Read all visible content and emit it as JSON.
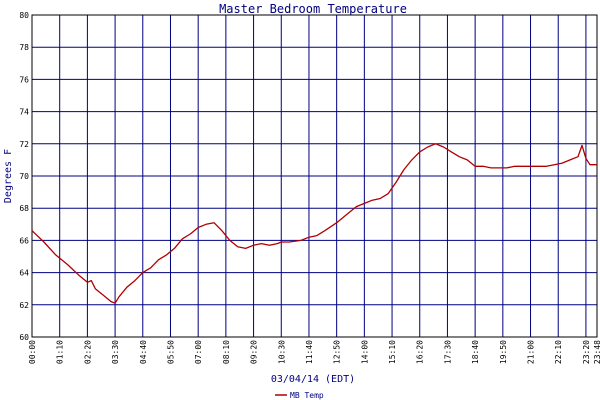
{
  "chart_data": {
    "type": "line",
    "title": "Master Bedroom Temperature",
    "xlabel": "03/04/14 (EDT)",
    "ylabel": "Degrees F",
    "ylim": [
      60,
      80
    ],
    "yticks": [
      60,
      62,
      64,
      66,
      68,
      70,
      72,
      74,
      76,
      78,
      80
    ],
    "xlim": [
      "00:00",
      "23:48"
    ],
    "xtick_labels": [
      "00:00",
      "01:10",
      "02:20",
      "03:30",
      "04:40",
      "05:50",
      "07:00",
      "08:10",
      "09:20",
      "10:30",
      "11:40",
      "12:50",
      "14:00",
      "15:10",
      "16:20",
      "17:30",
      "18:40",
      "19:50",
      "21:00",
      "22:10",
      "23:20",
      "23:48"
    ],
    "grid": true,
    "legend_position": "bottom-center",
    "colors": {
      "series": "#b00000",
      "grid": "#000080",
      "axes": "#000000",
      "text": "#000080"
    },
    "series": [
      {
        "name": "MB Temp",
        "x": [
          "00:00",
          "00:30",
          "01:00",
          "01:30",
          "02:00",
          "02:20",
          "02:30",
          "02:40",
          "03:00",
          "03:20",
          "03:30",
          "03:40",
          "04:00",
          "04:20",
          "04:40",
          "05:00",
          "05:20",
          "05:40",
          "06:00",
          "06:20",
          "06:40",
          "07:00",
          "07:20",
          "07:40",
          "08:00",
          "08:20",
          "08:40",
          "09:00",
          "09:20",
          "09:40",
          "10:00",
          "10:20",
          "10:30",
          "10:50",
          "11:20",
          "11:40",
          "12:00",
          "12:20",
          "12:50",
          "13:20",
          "13:40",
          "14:00",
          "14:20",
          "14:40",
          "15:00",
          "15:20",
          "15:40",
          "16:00",
          "16:20",
          "16:40",
          "17:00",
          "17:20",
          "17:40",
          "18:00",
          "18:20",
          "18:40",
          "19:00",
          "19:20",
          "19:40",
          "20:00",
          "20:20",
          "20:40",
          "21:00",
          "21:20",
          "21:40",
          "22:00",
          "22:20",
          "22:40",
          "23:00",
          "23:10",
          "23:20",
          "23:30",
          "23:48"
        ],
        "values": [
          66.6,
          65.9,
          65.1,
          64.5,
          63.8,
          63.4,
          63.5,
          63.0,
          62.6,
          62.2,
          62.1,
          62.5,
          63.1,
          63.5,
          64.0,
          64.3,
          64.8,
          65.1,
          65.5,
          66.1,
          66.4,
          66.8,
          67.0,
          67.1,
          66.6,
          66.0,
          65.6,
          65.5,
          65.7,
          65.8,
          65.7,
          65.8,
          65.9,
          65.9,
          66.0,
          66.2,
          66.3,
          66.6,
          67.1,
          67.7,
          68.1,
          68.3,
          68.5,
          68.6,
          68.9,
          69.6,
          70.4,
          71.0,
          71.5,
          71.8,
          72.0,
          71.8,
          71.5,
          71.2,
          71.0,
          70.6,
          70.6,
          70.5,
          70.5,
          70.5,
          70.6,
          70.6,
          70.6,
          70.6,
          70.6,
          70.7,
          70.8,
          71.0,
          71.2,
          71.9,
          71.1,
          70.7,
          70.7
        ]
      }
    ]
  }
}
